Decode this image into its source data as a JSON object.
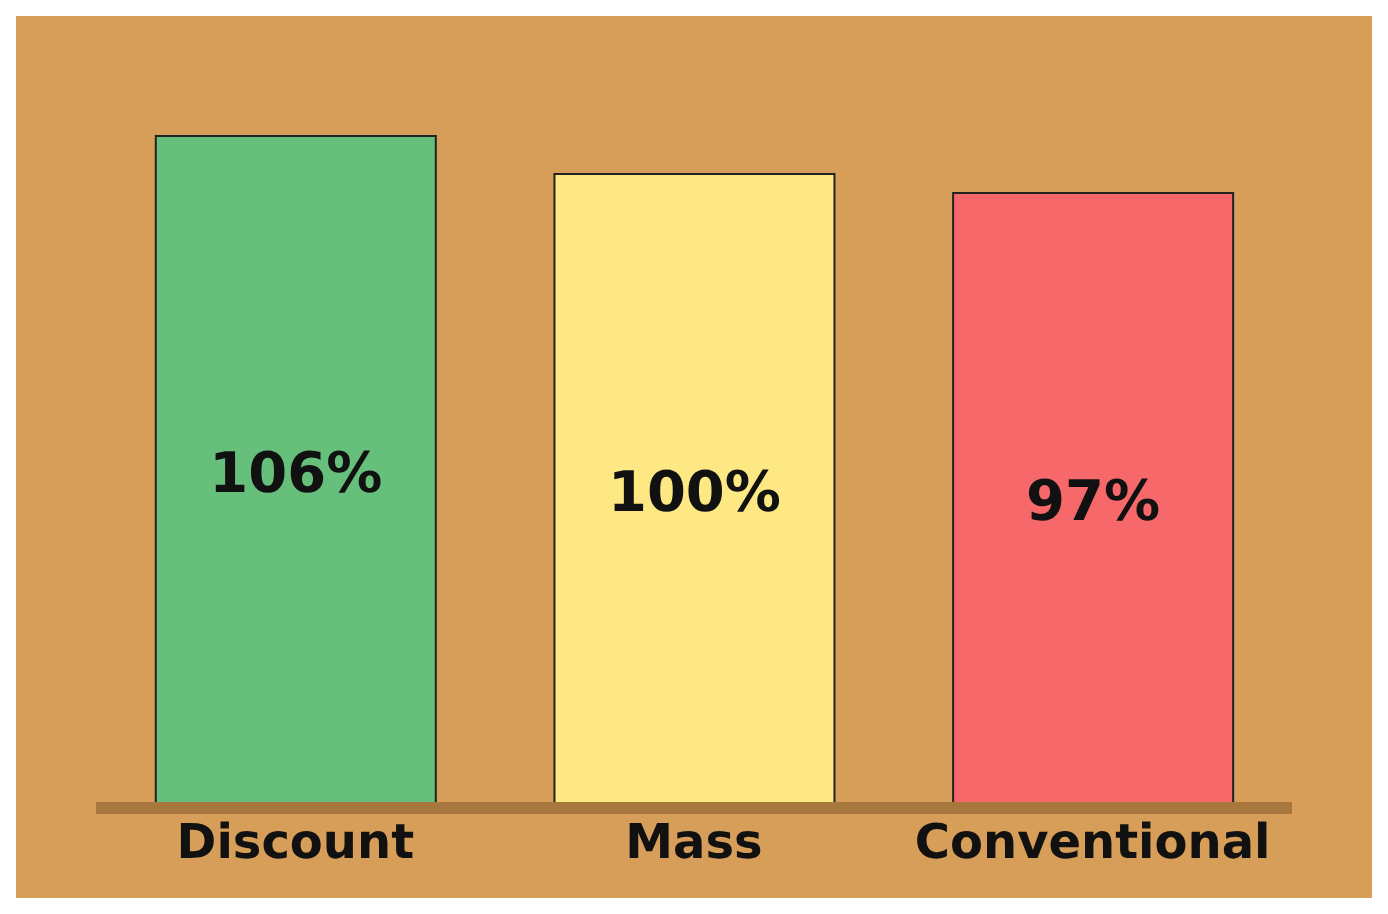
{
  "chart_data": {
    "type": "bar",
    "categories": [
      "Discount",
      "Mass",
      "Conventional"
    ],
    "values": [
      106,
      100,
      97
    ],
    "colors": [
      "#66c07b",
      "#fde883",
      "#f7686b"
    ],
    "value_labels": [
      "106%",
      "100%",
      "97%"
    ]
  }
}
